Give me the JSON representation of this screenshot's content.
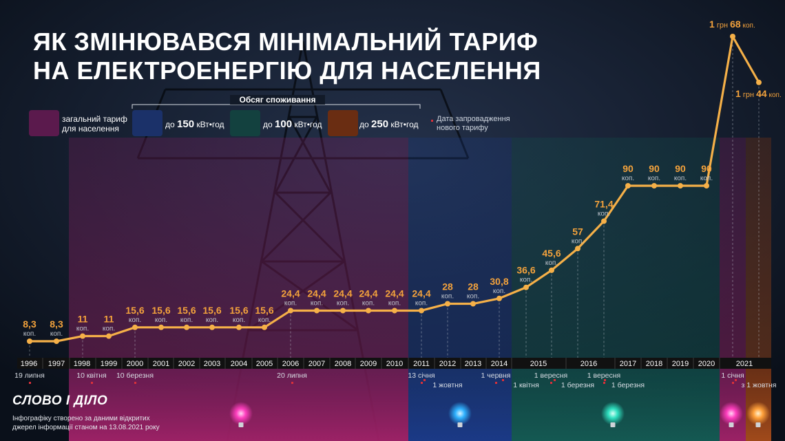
{
  "title_line1": "ЯК ЗМІНЮВАВСЯ МІНІМАЛЬНИЙ ТАРИФ",
  "title_line2": "НА ЕЛЕКТРОЕНЕРГІЮ ДЛЯ НАСЕЛЕННЯ",
  "legend": {
    "group_title": "Обсяг споживання",
    "general_line1": "загальний тариф",
    "general_line2": "для населення",
    "to": "до",
    "unit": "кВт•год",
    "v150": "150",
    "v100": "100",
    "v250": "250",
    "date_line1": "Дата запровадження",
    "date_line2": "нового тарифу"
  },
  "colors": {
    "general": "#8a1f63",
    "band150": "#1f3a7a",
    "band100": "#13514f",
    "band250": "#7a3514",
    "line": "#f5b048",
    "label": "#f3a23c"
  },
  "chart_data": {
    "type": "line",
    "title": "ЯК ЗМІНЮВАВСЯ МІНІМАЛЬНИЙ ТАРИФ НА ЕЛЕКТРОЕНЕРГІЮ ДЛЯ НАСЕЛЕННЯ",
    "xlabel": "",
    "ylabel": "",
    "unit_label": "коп.",
    "years": [
      "1996",
      "1997",
      "1998",
      "1999",
      "2000",
      "2001",
      "2002",
      "2003",
      "2004",
      "2005",
      "2006",
      "2007",
      "2008",
      "2009",
      "2010",
      "2011",
      "2012",
      "2013",
      "2014",
      "2015",
      "2016",
      "2017",
      "2018",
      "2019",
      "2020",
      "2021"
    ],
    "points": [
      {
        "label": "8,3",
        "value": 8.3
      },
      {
        "label": "8,3",
        "value": 8.3
      },
      {
        "label": "11",
        "value": 11
      },
      {
        "label": "11",
        "value": 11
      },
      {
        "label": "15,6",
        "value": 15.6
      },
      {
        "label": "15,6",
        "value": 15.6
      },
      {
        "label": "15,6",
        "value": 15.6
      },
      {
        "label": "15,6",
        "value": 15.6
      },
      {
        "label": "15,6",
        "value": 15.6
      },
      {
        "label": "15,6",
        "value": 15.6
      },
      {
        "label": "24,4",
        "value": 24.4
      },
      {
        "label": "24,4",
        "value": 24.4
      },
      {
        "label": "24,4",
        "value": 24.4
      },
      {
        "label": "24,4",
        "value": 24.4
      },
      {
        "label": "24,4",
        "value": 24.4
      },
      {
        "label": "24,4",
        "value": 24.4
      },
      {
        "label": "28",
        "value": 28
      },
      {
        "label": "28",
        "value": 28
      },
      {
        "label": "30,8",
        "value": 30.8
      },
      {
        "label": "36,6",
        "value": 36.6
      },
      {
        "label": "45,6",
        "value": 45.6
      },
      {
        "label": "57",
        "value": 57
      },
      {
        "label": "71,4",
        "value": 71.4
      },
      {
        "label": "90",
        "value": 90
      },
      {
        "label": "90",
        "value": 90
      },
      {
        "label": "90",
        "value": 90
      },
      {
        "label": "90",
        "value": 90
      },
      {
        "label": "1 грн 68",
        "value": 168
      },
      {
        "label": "1 грн 44",
        "value": 144
      }
    ],
    "dates": [
      {
        "text": "19 липня"
      },
      {
        "text": "10 квітня"
      },
      {
        "text": "10 березня"
      },
      {
        "text": "20 липня"
      },
      {
        "text": "13 січня"
      },
      {
        "text": "1 жовтня"
      },
      {
        "text": "1 червня"
      },
      {
        "text": "1 квітня"
      },
      {
        "text": "1 вересня"
      },
      {
        "text": "1 березня"
      },
      {
        "text": "1 вересня"
      },
      {
        "text": "1 березня"
      },
      {
        "text": "1 січня"
      },
      {
        "text": "з 1 жовтня"
      }
    ]
  },
  "footer_line1": "Інфографіку створено за даними відкритих",
  "footer_line2": "джерел інформації станом на 13.08.2021 року",
  "brand": "СЛОВО І ДІЛО"
}
